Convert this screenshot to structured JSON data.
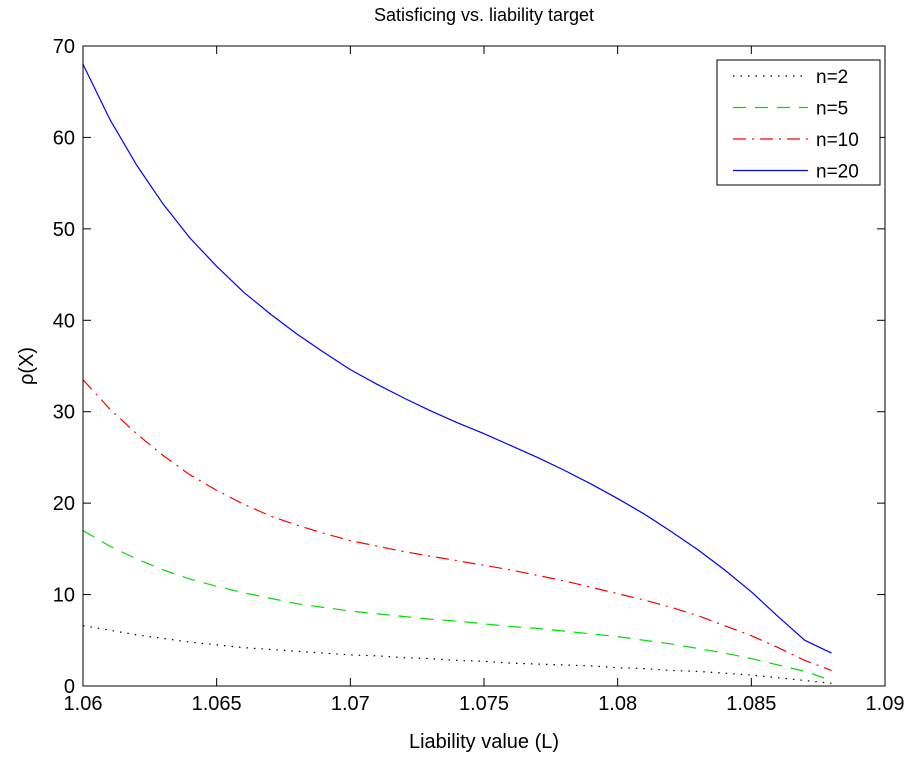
{
  "chart_data": {
    "type": "line",
    "title": "Satisficing vs. liability target",
    "xlabel": "Liability value (L)",
    "ylabel": "ρ(X)",
    "xlim": [
      1.06,
      1.09
    ],
    "ylim": [
      0,
      70
    ],
    "xticks": [
      "1.06",
      "1.065",
      "1.07",
      "1.075",
      "1.08",
      "1.085",
      "1.09"
    ],
    "xtick_values": [
      1.06,
      1.065,
      1.07,
      1.075,
      1.08,
      1.085,
      1.09
    ],
    "yticks": [
      "0",
      "10",
      "20",
      "30",
      "40",
      "50",
      "60",
      "70"
    ],
    "ytick_values": [
      0,
      10,
      20,
      30,
      40,
      50,
      60,
      70
    ],
    "grid": false,
    "legend_position": "top-right",
    "x": [
      1.06,
      1.061,
      1.062,
      1.063,
      1.064,
      1.065,
      1.066,
      1.067,
      1.068,
      1.069,
      1.07,
      1.071,
      1.072,
      1.073,
      1.074,
      1.075,
      1.076,
      1.077,
      1.078,
      1.079,
      1.08,
      1.081,
      1.082,
      1.083,
      1.084,
      1.085,
      1.086,
      1.087,
      1.088
    ],
    "series": [
      {
        "name": "n=2",
        "color": "#000000",
        "dash": "dotted",
        "values": [
          6.6,
          6.1,
          5.6,
          5.2,
          4.8,
          4.5,
          4.2,
          4.0,
          3.8,
          3.6,
          3.4,
          3.3,
          3.1,
          3.0,
          2.8,
          2.7,
          2.5,
          2.4,
          2.3,
          2.2,
          2.0,
          1.9,
          1.7,
          1.6,
          1.4,
          1.2,
          0.9,
          0.6,
          0.3
        ]
      },
      {
        "name": "n=5",
        "color": "#00dd00",
        "dash": "dashed",
        "values": [
          17.0,
          15.3,
          13.9,
          12.7,
          11.7,
          10.9,
          10.2,
          9.6,
          9.0,
          8.6,
          8.2,
          7.9,
          7.6,
          7.3,
          7.1,
          6.8,
          6.5,
          6.3,
          6.0,
          5.7,
          5.4,
          5.0,
          4.6,
          4.1,
          3.6,
          3.0,
          2.3,
          1.6,
          0.6
        ]
      },
      {
        "name": "n=10",
        "color": "#ff0000",
        "dash": "dashdot",
        "values": [
          33.5,
          30.3,
          27.6,
          25.2,
          23.1,
          21.4,
          19.9,
          18.6,
          17.6,
          16.7,
          15.9,
          15.3,
          14.7,
          14.2,
          13.7,
          13.2,
          12.7,
          12.1,
          11.5,
          10.8,
          10.1,
          9.4,
          8.6,
          7.7,
          6.6,
          5.5,
          4.2,
          2.8,
          1.7
        ]
      },
      {
        "name": "n=20",
        "color": "#0000ff",
        "dash": "solid",
        "values": [
          68.0,
          62.0,
          57.0,
          52.7,
          49.0,
          45.9,
          43.1,
          40.7,
          38.5,
          36.5,
          34.6,
          33.0,
          31.5,
          30.1,
          28.8,
          27.6,
          26.3,
          25.0,
          23.6,
          22.1,
          20.5,
          18.8,
          16.9,
          14.9,
          12.7,
          10.3,
          7.6,
          5.0,
          3.6
        ]
      }
    ]
  }
}
